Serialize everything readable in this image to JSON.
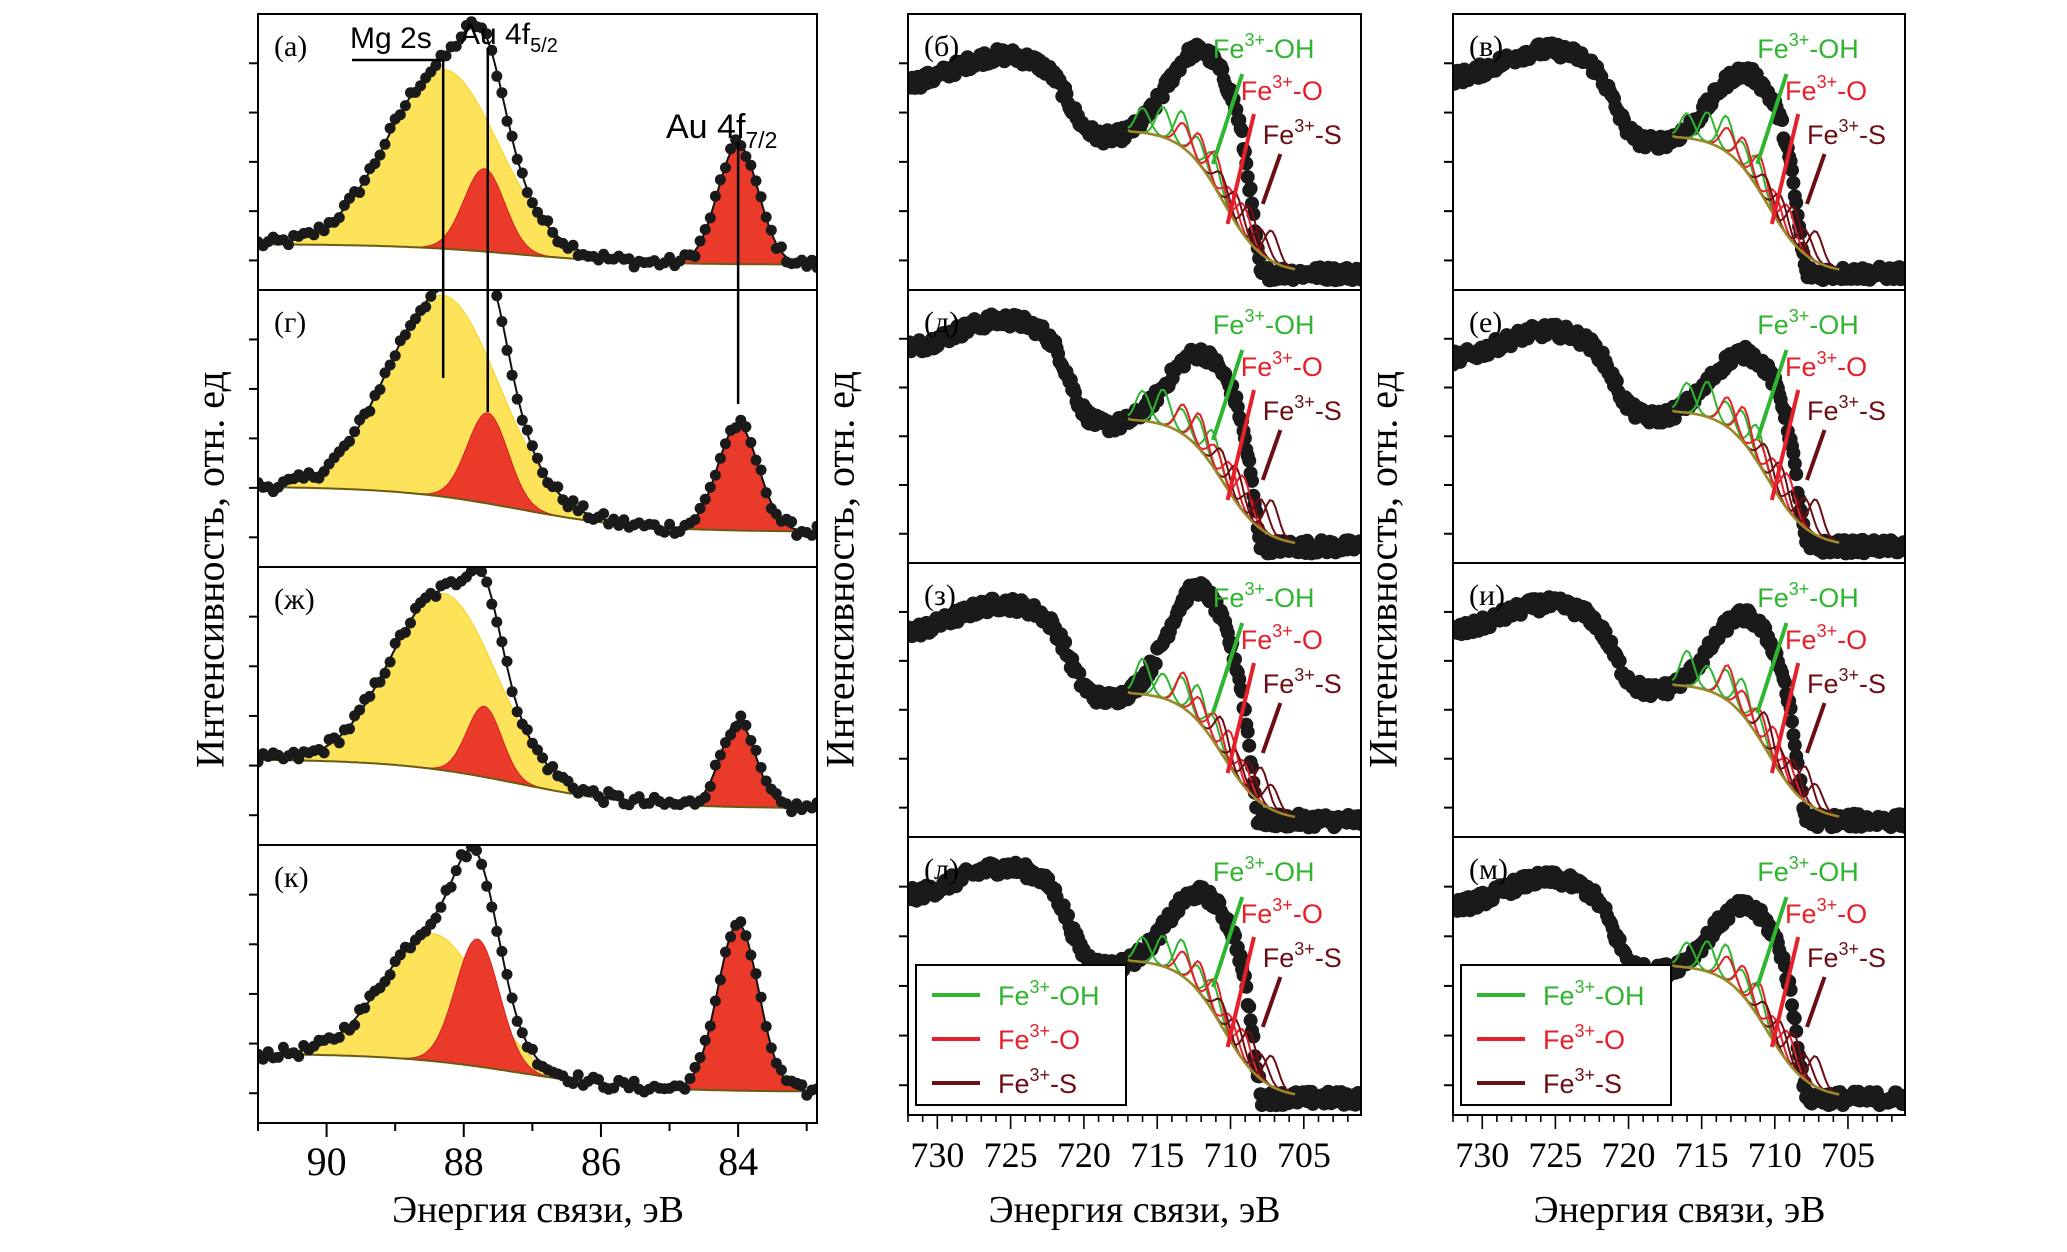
{
  "figure": {
    "y_axis_title": "Интенсивность, отн. ед",
    "x_axis_title": "Энергия связи, эВ"
  },
  "colors": {
    "data": "#1a1a1a",
    "mg2s_fill": "#fde35a",
    "au_fill": "#ea3a2a",
    "background_line": "#6b5a12",
    "fe_oh": "#2fb52f",
    "fe_o": "#e5202a",
    "fe_s": "#6b0f14",
    "orange": "#f08a1e"
  },
  "chart_data": [
    {
      "type": "line",
      "column": "Au 4f / Mg 2s",
      "xlabel": "Энергия связи, эВ",
      "ylabel": "Интенсивность, отн. ед",
      "xlim": [
        91.0,
        82.85
      ],
      "x_ticks": [
        90,
        88,
        86,
        84
      ],
      "x_tick_labels": [
        "90",
        "88",
        "86",
        "84"
      ],
      "annotations": [
        {
          "label": "Mg 2s",
          "x": 88.3
        },
        {
          "label": "Au 4f",
          "sub": "5/2",
          "x": 87.65
        },
        {
          "label": "Au 4f",
          "sub": "7/2",
          "x": 84.0
        }
      ],
      "panels": [
        {
          "label": "(а)",
          "peaks": {
            "mg2s": {
              "center": 88.3,
              "height": 0.78,
              "fwhm": 1.9
            },
            "au52": {
              "center": 87.7,
              "height": 0.36,
              "fwhm": 0.7
            },
            "au72": {
              "center": 84.0,
              "height": 0.52,
              "fwhm": 0.7
            }
          },
          "baseline": [
            0.12,
            0.0
          ],
          "ylim": [
            -0.05,
            1.15
          ]
        },
        {
          "label": "(г)",
          "peaks": {
            "mg2s": {
              "center": 88.3,
              "height": 0.8,
              "fwhm": 1.9
            },
            "au52": {
              "center": 87.65,
              "height": 0.36,
              "fwhm": 0.7
            },
            "au72": {
              "center": 84.0,
              "height": 0.42,
              "fwhm": 0.7
            }
          },
          "baseline": [
            0.24,
            0.0
          ],
          "ylim": [
            -0.05,
            1.05
          ]
        },
        {
          "label": "(ж)",
          "peaks": {
            "mg2s": {
              "center": 88.3,
              "height": 0.7,
              "fwhm": 1.8
            },
            "au52": {
              "center": 87.7,
              "height": 0.28,
              "fwhm": 0.6
            },
            "au72": {
              "center": 84.0,
              "height": 0.34,
              "fwhm": 0.6
            }
          },
          "baseline": [
            0.26,
            0.0
          ],
          "ylim": [
            -0.05,
            1.05
          ]
        },
        {
          "label": "(к)",
          "peaks": {
            "mg2s": {
              "center": 88.45,
              "height": 0.55,
              "fwhm": 1.7
            },
            "au52": {
              "center": 87.8,
              "height": 0.55,
              "fwhm": 0.75
            },
            "au72": {
              "center": 84.0,
              "height": 0.72,
              "fwhm": 0.7
            }
          },
          "baseline": [
            0.22,
            0.0
          ],
          "ylim": [
            -0.05,
            1.15
          ]
        }
      ]
    },
    {
      "type": "line",
      "column": "Fe 2p (middle)",
      "xlabel": "Энергия связи, эВ",
      "ylabel": "Интенсивность, отн. ед",
      "xlim": [
        732.0,
        701.1
      ],
      "x_ticks": [
        730,
        725,
        720,
        715,
        710,
        705
      ],
      "x_tick_labels": [
        "730",
        "725",
        "720",
        "715",
        "710",
        "705"
      ],
      "component_labels": [
        "Fe3+-OH",
        "Fe3+-O",
        "Fe3+-S"
      ],
      "legend": {
        "panel": "(л)",
        "placement": "bottom-left",
        "entries": [
          "Fe3+-OH",
          "Fe3+-O",
          "Fe3+-S"
        ]
      },
      "panels": [
        {
          "label": "(б)",
          "plateau": 0.8,
          "dip": 0.6,
          "hump": 0.82,
          "low": 0.06
        },
        {
          "label": "(д)",
          "plateau": 0.84,
          "dip": 0.55,
          "hump": 0.72,
          "low": 0.06
        },
        {
          "label": "(з)",
          "plateau": 0.8,
          "dip": 0.55,
          "hump": 0.86,
          "low": 0.06
        },
        {
          "label": "(л)",
          "plateau": 0.84,
          "dip": 0.58,
          "hump": 0.75,
          "low": 0.06
        }
      ]
    },
    {
      "type": "line",
      "column": "Fe 2p (right)",
      "xlabel": "Энергия связи, эВ",
      "ylabel": "Интенсивность, отн. ед",
      "xlim": [
        732.0,
        701.1
      ],
      "x_ticks": [
        730,
        725,
        720,
        715,
        710,
        705
      ],
      "x_tick_labels": [
        "730",
        "725",
        "720",
        "715",
        "710",
        "705"
      ],
      "component_labels": [
        "Fe3+-OH",
        "Fe3+-O",
        "Fe3+-S"
      ],
      "legend": {
        "panel": "(м)",
        "placement": "bottom-left",
        "entries": [
          "Fe3+-OH",
          "Fe3+-O",
          "Fe3+-S"
        ]
      },
      "panels": [
        {
          "label": "(в)",
          "plateau": 0.82,
          "dip": 0.58,
          "hump": 0.74,
          "low": 0.06
        },
        {
          "label": "(е)",
          "plateau": 0.8,
          "dip": 0.58,
          "hump": 0.72,
          "low": 0.06
        },
        {
          "label": "(и)",
          "plateau": 0.8,
          "dip": 0.58,
          "hump": 0.76,
          "low": 0.06
        },
        {
          "label": "(м)",
          "plateau": 0.8,
          "dip": 0.56,
          "hump": 0.7,
          "low": 0.06
        }
      ]
    }
  ]
}
